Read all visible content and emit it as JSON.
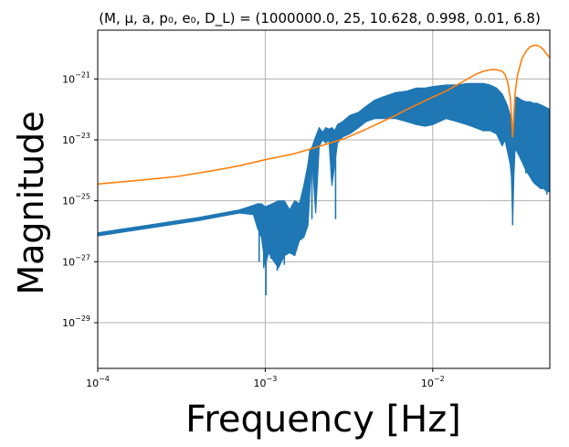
{
  "chart_data": {
    "type": "line",
    "title": "(M, μ, a, p₀, e₀, D_L) = (1000000.0, 25, 10.628, 0.998, 0.01, 6.8)",
    "xlabel": "Frequency [Hz]",
    "ylabel": "Magnitude",
    "x_scale": "log",
    "y_scale": "log",
    "xlim": [
      0.0001,
      0.05
    ],
    "ylim_log10": [
      -30.5,
      -19.4
    ],
    "grid": true,
    "x_ticks": [
      {
        "value": 0.0001,
        "base": "10",
        "exp": "−4"
      },
      {
        "value": 0.001,
        "base": "10",
        "exp": "−3"
      },
      {
        "value": 0.01,
        "base": "10",
        "exp": "−2"
      }
    ],
    "y_ticks": [
      {
        "log10": -29,
        "base": "10",
        "exp": "−29"
      },
      {
        "log10": -27,
        "base": "10",
        "exp": "−27"
      },
      {
        "log10": -25,
        "base": "10",
        "exp": "−25"
      },
      {
        "log10": -23,
        "base": "10",
        "exp": "−23"
      },
      {
        "log10": -21,
        "base": "10",
        "exp": "−21"
      }
    ],
    "series": [
      {
        "color": "#1f77b4",
        "band": true,
        "x": [
          0.0001,
          0.0002,
          0.0004,
          0.0007,
          0.00085,
          0.0009,
          0.00095,
          0.001,
          0.00105,
          0.0011,
          0.0012,
          0.0013,
          0.0014,
          0.0015,
          0.0016,
          0.0017,
          0.0018,
          0.00185,
          0.0019,
          0.002,
          0.0021,
          0.0022,
          0.0023,
          0.0024,
          0.0025,
          0.0026,
          0.0027,
          0.0029,
          0.0032,
          0.0036,
          0.004,
          0.0045,
          0.005,
          0.006,
          0.007,
          0.008,
          0.009,
          0.01,
          0.012,
          0.014,
          0.016,
          0.018,
          0.02,
          0.022,
          0.024,
          0.025,
          0.026,
          0.027,
          0.028,
          0.029,
          0.0295,
          0.03,
          0.0305,
          0.031,
          0.032,
          0.034,
          0.036,
          0.038,
          0.04,
          0.042,
          0.044,
          0.046,
          0.048,
          0.05
        ],
        "upper_log10": [
          -26.05,
          -25.8,
          -25.55,
          -25.3,
          -25.15,
          -25.1,
          -25.1,
          -25.2,
          -25.15,
          -25.1,
          -25.0,
          -25.0,
          -25.3,
          -25.0,
          -25.1,
          -24.5,
          -23.8,
          -23.3,
          -23.25,
          -22.9,
          -22.6,
          -22.75,
          -22.6,
          -22.65,
          -22.6,
          -22.7,
          -22.5,
          -22.4,
          -22.2,
          -22.1,
          -21.9,
          -21.7,
          -21.6,
          -21.45,
          -21.4,
          -21.3,
          -21.3,
          -21.25,
          -21.2,
          -21.2,
          -21.15,
          -21.15,
          -21.15,
          -21.2,
          -21.3,
          -21.4,
          -21.5,
          -21.7,
          -21.9,
          -22.2,
          -22.6,
          -23.0,
          -22.5,
          -21.6,
          -21.6,
          -21.7,
          -21.75,
          -21.75,
          -21.8,
          -21.8,
          -21.85,
          -21.9,
          -21.95,
          -22.0
        ],
        "lower_log10": [
          -26.15,
          -25.9,
          -25.65,
          -25.4,
          -25.45,
          -25.9,
          -26.2,
          -27.1,
          -26.7,
          -26.9,
          -27.2,
          -26.8,
          -26.7,
          -26.8,
          -26.3,
          -26.2,
          -25.8,
          -24.6,
          -23.5,
          -25.4,
          -23.2,
          -23.0,
          -23.1,
          -23.0,
          -24.5,
          -23.8,
          -23.1,
          -22.9,
          -22.8,
          -22.6,
          -22.4,
          -22.3,
          -22.3,
          -22.3,
          -22.4,
          -22.5,
          -22.55,
          -22.5,
          -22.3,
          -22.4,
          -22.5,
          -22.6,
          -22.7,
          -22.7,
          -22.8,
          -23.0,
          -23.2,
          -23.0,
          -23.4,
          -23.8,
          -24.2,
          -25.7,
          -24.2,
          -23.3,
          -23.4,
          -23.7,
          -24.0,
          -24.2,
          -24.4,
          -24.5,
          -24.6,
          -24.6,
          -24.7,
          -24.7
        ],
        "dips": [
          {
            "x": 0.00092,
            "log10": -27.0
          },
          {
            "x": 0.00098,
            "log10": -27.2
          },
          {
            "x": 0.00101,
            "log10": -28.1
          },
          {
            "x": 0.00108,
            "log10": -26.9
          },
          {
            "x": 0.00118,
            "log10": -27.3
          },
          {
            "x": 0.0013,
            "log10": -27.1
          },
          {
            "x": 0.00145,
            "log10": -26.7
          },
          {
            "x": 0.0019,
            "log10": -25.6
          },
          {
            "x": 0.00263,
            "log10": -25.6
          },
          {
            "x": 0.0254,
            "log10": -23.0
          },
          {
            "x": 0.03,
            "log10": -25.8
          },
          {
            "x": 0.036,
            "log10": -24.1
          },
          {
            "x": 0.04,
            "log10": -24.3
          },
          {
            "x": 0.044,
            "log10": -24.6
          },
          {
            "x": 0.048,
            "log10": -24.8
          }
        ]
      },
      {
        "color": "#ff7f0e",
        "band": false,
        "x": [
          0.0001,
          0.0002,
          0.0003,
          0.0005,
          0.0007,
          0.001,
          0.0015,
          0.002,
          0.003,
          0.004,
          0.005,
          0.006,
          0.007,
          0.008,
          0.01,
          0.012,
          0.015,
          0.018,
          0.02,
          0.022,
          0.024,
          0.026,
          0.027,
          0.028,
          0.029,
          0.0295,
          0.03,
          0.0305,
          0.031,
          0.032,
          0.034,
          0.036,
          0.038,
          0.04,
          0.042,
          0.044,
          0.046,
          0.048,
          0.05
        ],
        "log10": [
          -24.45,
          -24.3,
          -24.2,
          -24.0,
          -23.85,
          -23.65,
          -23.45,
          -23.25,
          -22.95,
          -22.65,
          -22.4,
          -22.2,
          -22.0,
          -21.85,
          -21.6,
          -21.4,
          -21.1,
          -20.85,
          -20.75,
          -20.7,
          -20.7,
          -20.75,
          -20.85,
          -21.1,
          -21.6,
          -22.2,
          -22.9,
          -22.2,
          -21.5,
          -20.9,
          -20.35,
          -20.1,
          -19.95,
          -19.9,
          -19.9,
          -19.95,
          -20.05,
          -20.2,
          -20.3
        ]
      }
    ]
  }
}
